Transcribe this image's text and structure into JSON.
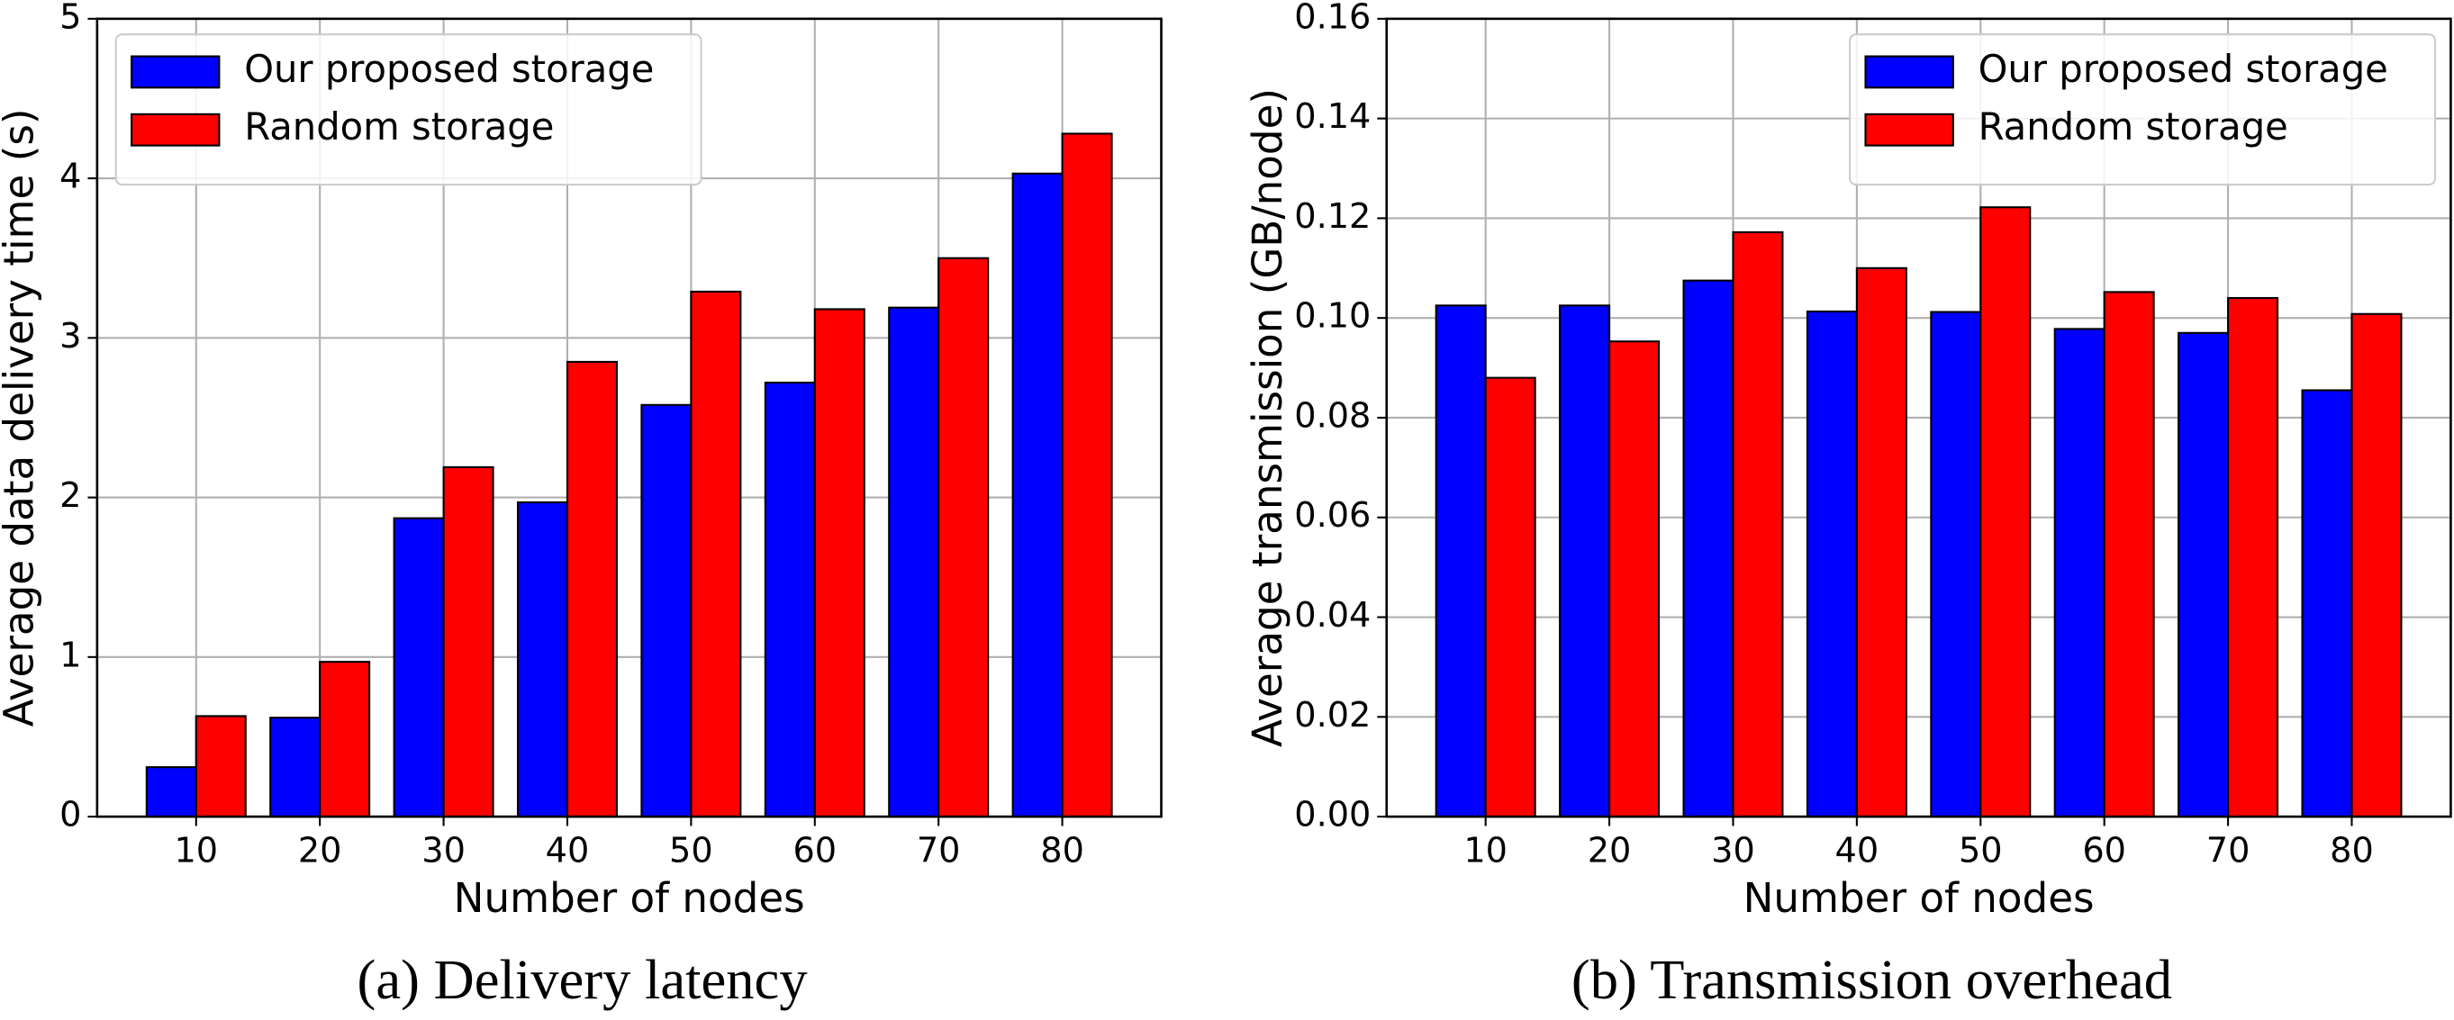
{
  "chart_data": [
    {
      "type": "bar",
      "caption": "(a) Delivery latency",
      "xlabel": "Number of nodes",
      "ylabel": "Average data delivery time (s)",
      "x": [
        10,
        20,
        30,
        40,
        50,
        60,
        70,
        80
      ],
      "xlim": [
        2,
        88
      ],
      "xticks": [
        10,
        20,
        30,
        40,
        50,
        60,
        70,
        80
      ],
      "ylim": [
        0,
        5
      ],
      "yticks": [
        0,
        1,
        2,
        3,
        4,
        5
      ],
      "grid": true,
      "legend": "upper left",
      "series": [
        {
          "name": "Our proposed storage",
          "color": "#0000ff",
          "values": [
            0.31,
            0.62,
            1.87,
            1.97,
            2.58,
            2.72,
            3.19,
            4.03
          ]
        },
        {
          "name": "Random storage",
          "color": "#ff0000",
          "values": [
            0.63,
            0.97,
            2.19,
            2.85,
            3.29,
            3.18,
            3.5,
            4.28
          ]
        }
      ]
    },
    {
      "type": "bar",
      "caption": "(b) Transmission overhead",
      "xlabel": "Number of nodes",
      "ylabel": "Average transmission (GB/node)",
      "x": [
        10,
        20,
        30,
        40,
        50,
        60,
        70,
        80
      ],
      "xlim": [
        2,
        88
      ],
      "xticks": [
        10,
        20,
        30,
        40,
        50,
        60,
        70,
        80
      ],
      "ylim": [
        0,
        0.16
      ],
      "yticks": [
        {
          "value": 0,
          "label": "0.00"
        },
        0.02,
        0.04,
        0.06,
        0.08,
        {
          "value": 0.1,
          "label": "0.10"
        },
        0.12,
        0.14,
        0.16
      ],
      "grid": true,
      "legend": "upper right",
      "series": [
        {
          "name": "Our proposed storage",
          "color": "#0000ff",
          "values": [
            0.1025,
            0.1025,
            0.1075,
            0.1013,
            0.1012,
            0.0978,
            0.097,
            0.0855
          ]
        },
        {
          "name": "Random storage",
          "color": "#ff0000",
          "values": [
            0.088,
            0.0953,
            0.1172,
            0.11,
            0.1222,
            0.1052,
            0.104,
            0.1008
          ]
        }
      ]
    }
  ]
}
